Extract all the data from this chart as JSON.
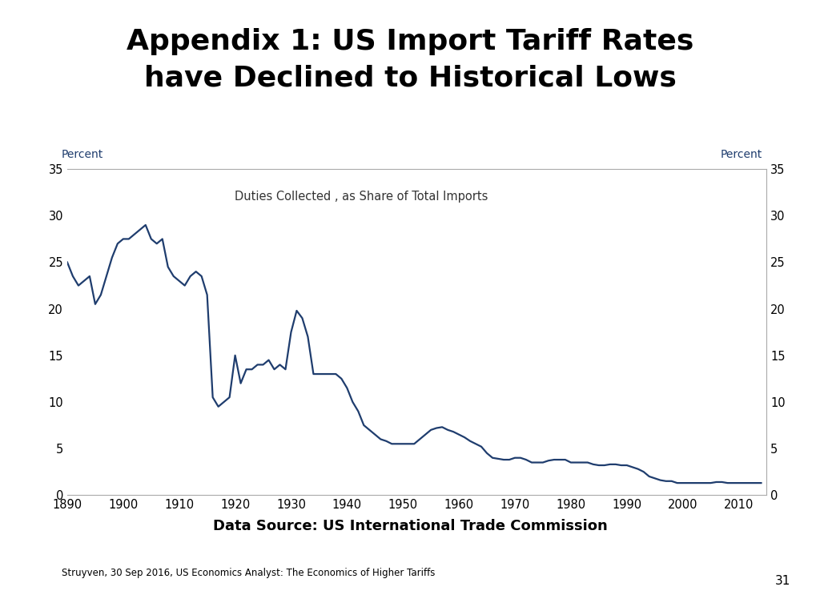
{
  "title_line1": "Appendix 1: US Import Tariff Rates",
  "title_line2": "have Declined to Historical Lows",
  "title_fontsize": 26,
  "title_fontweight": "bold",
  "ylabel_left": "Percent",
  "ylabel_right": "Percent",
  "annotation": "Duties Collected , as Share of Total Imports",
  "datasource": "Data Source: US International Trade Commission",
  "footnote": "Struyven, 30 Sep 2016, US Economics Analyst: The Economics of Higher Tariffs",
  "page_number": "31",
  "line_color": "#1f3d6e",
  "line_width": 1.6,
  "ylim": [
    0,
    35
  ],
  "yticks": [
    0,
    5,
    10,
    15,
    20,
    25,
    30,
    35
  ],
  "xlim": [
    1890,
    2015
  ],
  "xticks": [
    1890,
    1900,
    1910,
    1920,
    1930,
    1940,
    1950,
    1960,
    1970,
    1980,
    1990,
    2000,
    2010
  ],
  "years": [
    1890,
    1891,
    1892,
    1893,
    1894,
    1895,
    1896,
    1897,
    1898,
    1899,
    1900,
    1901,
    1902,
    1903,
    1904,
    1905,
    1906,
    1907,
    1908,
    1909,
    1910,
    1911,
    1912,
    1913,
    1914,
    1915,
    1916,
    1917,
    1918,
    1919,
    1920,
    1921,
    1922,
    1923,
    1924,
    1925,
    1926,
    1927,
    1928,
    1929,
    1930,
    1931,
    1932,
    1933,
    1934,
    1935,
    1936,
    1937,
    1938,
    1939,
    1940,
    1941,
    1942,
    1943,
    1944,
    1945,
    1946,
    1947,
    1948,
    1949,
    1950,
    1951,
    1952,
    1953,
    1954,
    1955,
    1956,
    1957,
    1958,
    1959,
    1960,
    1961,
    1962,
    1963,
    1964,
    1965,
    1966,
    1967,
    1968,
    1969,
    1970,
    1971,
    1972,
    1973,
    1974,
    1975,
    1976,
    1977,
    1978,
    1979,
    1980,
    1981,
    1982,
    1983,
    1984,
    1985,
    1986,
    1987,
    1988,
    1989,
    1990,
    1991,
    1992,
    1993,
    1994,
    1995,
    1996,
    1997,
    1998,
    1999,
    2000,
    2001,
    2002,
    2003,
    2004,
    2005,
    2006,
    2007,
    2008,
    2009,
    2010,
    2011,
    2012,
    2013,
    2014
  ],
  "values": [
    25.0,
    23.5,
    22.5,
    23.0,
    23.5,
    20.5,
    21.5,
    23.5,
    25.5,
    27.0,
    27.5,
    27.5,
    28.0,
    28.5,
    29.0,
    27.5,
    27.0,
    27.5,
    24.5,
    23.5,
    23.0,
    22.5,
    23.5,
    24.0,
    23.5,
    21.5,
    10.5,
    9.5,
    10.0,
    10.5,
    15.0,
    12.0,
    13.5,
    13.5,
    14.0,
    14.0,
    14.5,
    13.5,
    14.0,
    13.5,
    17.5,
    19.8,
    19.0,
    17.0,
    13.0,
    13.0,
    13.0,
    13.0,
    13.0,
    12.5,
    11.5,
    10.0,
    9.0,
    7.5,
    7.0,
    6.5,
    6.0,
    5.8,
    5.5,
    5.5,
    5.5,
    5.5,
    5.5,
    6.0,
    6.5,
    7.0,
    7.2,
    7.3,
    7.0,
    6.8,
    6.5,
    6.2,
    5.8,
    5.5,
    5.2,
    4.5,
    4.0,
    3.9,
    3.8,
    3.8,
    4.0,
    4.0,
    3.8,
    3.5,
    3.5,
    3.5,
    3.7,
    3.8,
    3.8,
    3.8,
    3.5,
    3.5,
    3.5,
    3.5,
    3.3,
    3.2,
    3.2,
    3.3,
    3.3,
    3.2,
    3.2,
    3.0,
    2.8,
    2.5,
    2.0,
    1.8,
    1.6,
    1.5,
    1.5,
    1.3,
    1.3,
    1.3,
    1.3,
    1.3,
    1.3,
    1.3,
    1.4,
    1.4,
    1.3,
    1.3,
    1.3,
    1.3,
    1.3,
    1.3,
    1.3
  ]
}
